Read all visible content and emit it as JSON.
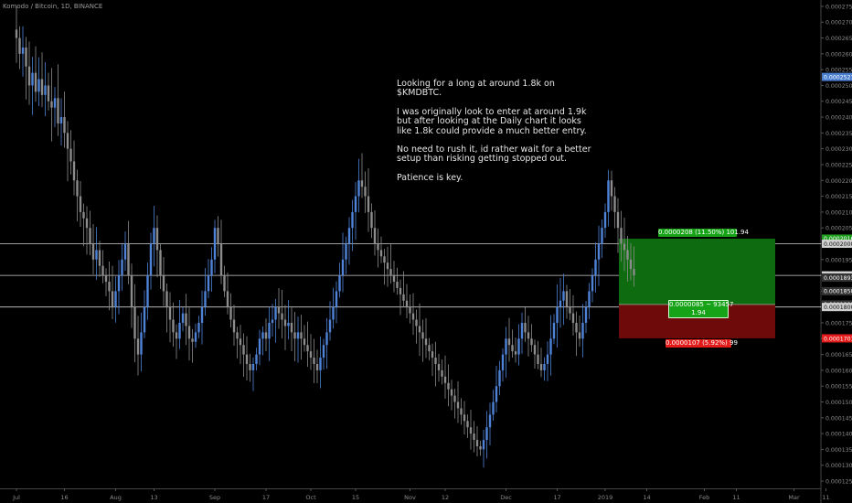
{
  "header": {
    "title": "Komodo / Bitcoin, 1D, BINANCE"
  },
  "note": {
    "paragraphs": [
      "Looking for a long at around 1.8k on $KMDBTC.",
      "I was originally look to enter at around 1.9k but after looking at the Daily chart it looks like 1.8k could provide a much better entry.",
      "No need to rush it, id rather wait for a better setup than risking getting stopped out.",
      "Patience is key."
    ]
  },
  "position": {
    "target_label": "0.0000208 (11.50%) 101.94",
    "risk_reward_label_line1": "0.0000085 ~ 93457",
    "risk_reward_label_line2": "1.94",
    "stop_label": "0.0000107 (5.92%) 99",
    "entry": 0.0001808,
    "target": 0.0002016,
    "stop": 0.0001701,
    "colors": {
      "profit": "#0f6b0f",
      "loss": "#6e0a0a",
      "profit_badge": "#17a317",
      "loss_badge": "#e31b1b"
    }
  },
  "chart_data": {
    "type": "candlestick",
    "title": "Komodo / Bitcoin, 1D, BINANCE",
    "y_ticks": [
      "0.0002750",
      "0.0002700",
      "0.0002650",
      "0.0002600",
      "0.0002550",
      "0.0002500",
      "0.0002450",
      "0.0002400",
      "0.0002350",
      "0.0002300",
      "0.0002250",
      "0.0002200",
      "0.0002150",
      "0.0002100",
      "0.0002050",
      "0.0002000",
      "0.0001950",
      "0.0001900",
      "0.0001850",
      "0.0001800",
      "0.0001750",
      "0.0001700",
      "0.0001650",
      "0.0001600",
      "0.0001550",
      "0.0001500",
      "0.0001450",
      "0.0001400",
      "0.0001350",
      "0.0001300",
      "0.0001250"
    ],
    "ylim": [
      0.0001227,
      0.000277
    ],
    "x_ticks": [
      {
        "label": "Jul",
        "day": 0
      },
      {
        "label": "16",
        "day": 15
      },
      {
        "label": "Aug",
        "day": 31
      },
      {
        "label": "13",
        "day": 43
      },
      {
        "label": "Sep",
        "day": 62
      },
      {
        "label": "17",
        "day": 78
      },
      {
        "label": "Oct",
        "day": 92
      },
      {
        "label": "15",
        "day": 106
      },
      {
        "label": "Nov",
        "day": 123
      },
      {
        "label": "12",
        "day": 134
      },
      {
        "label": "Dec",
        "day": 153
      },
      {
        "label": "17",
        "day": 169
      },
      {
        "label": "2019",
        "day": 184
      },
      {
        "label": "14",
        "day": 197
      },
      {
        "label": "Feb",
        "day": 215
      },
      {
        "label": "11",
        "day": 225
      },
      {
        "label": "Mar",
        "day": 243
      },
      {
        "label": "11",
        "day": 253
      }
    ],
    "price_levels": [
      {
        "value": "0.0002527",
        "color": "#4a7fd0"
      },
      {
        "value": "0.0002016",
        "color": "#1f9e1f"
      },
      {
        "value": "0.0002000",
        "color": "#cfcfcf"
      },
      {
        "value": "0.0001900",
        "color": "#cfcfcf"
      },
      {
        "value": "0.0001893",
        "color": "#333333"
      },
      {
        "value": "0.0001850",
        "color": "#333333"
      },
      {
        "value": "0.0001808",
        "color": "#333333"
      },
      {
        "value": "0.0001800",
        "color": "#cfcfcf"
      },
      {
        "value": "0.0001701",
        "color": "#e31b1b"
      }
    ],
    "horizontal_lines": [
      0.0002,
      0.00019,
      0.00018
    ],
    "closes": [
      0.000265,
      0.00026,
      0.000262,
      0.000256,
      0.00025,
      0.000254,
      0.000248,
      0.000252,
      0.000247,
      0.00025,
      0.000245,
      0.000243,
      0.000246,
      0.000238,
      0.00024,
      0.000235,
      0.00023,
      0.000226,
      0.00022,
      0.000215,
      0.00021,
      0.000208,
      0.000205,
      0.0002,
      0.000195,
      0.000198,
      0.000193,
      0.00019,
      0.000188,
      0.000185,
      0.00018,
      0.000185,
      0.00019,
      0.000195,
      0.0002,
      0.00019,
      0.00018,
      0.00017,
      0.000165,
      0.000172,
      0.00018,
      0.00019,
      0.0002,
      0.000205,
      0.000198,
      0.00019,
      0.000185,
      0.00018,
      0.000176,
      0.000172,
      0.00017,
      0.000175,
      0.000178,
      0.000174,
      0.00017,
      0.000169,
      0.000172,
      0.000175,
      0.00018,
      0.000185,
      0.00019,
      0.000195,
      0.000205,
      0.0002,
      0.00019,
      0.000185,
      0.00018,
      0.000176,
      0.000172,
      0.00017,
      0.000168,
      0.000165,
      0.000162,
      0.00016,
      0.000162,
      0.000165,
      0.00017,
      0.000172,
      0.00017,
      0.000175,
      0.000176,
      0.00018,
      0.000178,
      0.000176,
      0.000174,
      0.000175,
      0.000172,
      0.00017,
      0.000172,
      0.00017,
      0.000168,
      0.000166,
      0.000164,
      0.000162,
      0.00016,
      0.000164,
      0.000168,
      0.000172,
      0.000176,
      0.00018,
      0.000185,
      0.00019,
      0.000195,
      0.0002,
      0.000205,
      0.00021,
      0.000215,
      0.00022,
      0.000218,
      0.000215,
      0.00021,
      0.000205,
      0.0002,
      0.000198,
      0.000196,
      0.000194,
      0.000192,
      0.00019,
      0.000188,
      0.000186,
      0.000184,
      0.000182,
      0.00018,
      0.000178,
      0.000176,
      0.000174,
      0.000172,
      0.00017,
      0.000168,
      0.000166,
      0.000164,
      0.000162,
      0.00016,
      0.000158,
      0.000156,
      0.000154,
      0.000152,
      0.00015,
      0.000148,
      0.000146,
      0.000144,
      0.000142,
      0.00014,
      0.000138,
      0.000136,
      0.000135,
      0.000138,
      0.000142,
      0.000146,
      0.00015,
      0.000155,
      0.00016,
      0.000165,
      0.00017,
      0.000168,
      0.000166,
      0.000165,
      0.00017,
      0.000175,
      0.000172,
      0.00017,
      0.000168,
      0.000165,
      0.000162,
      0.00016,
      0.000162,
      0.000165,
      0.00017,
      0.000175,
      0.00018,
      0.000182,
      0.000185,
      0.00018,
      0.000178,
      0.000175,
      0.000172,
      0.00017,
      0.000175,
      0.00018,
      0.000185,
      0.00019,
      0.000195,
      0.0002,
      0.000205,
      0.00021,
      0.00022,
      0.000215,
      0.00021,
      0.000205,
      0.0002,
      0.000198,
      0.000195,
      0.000192,
      0.00019
    ]
  }
}
